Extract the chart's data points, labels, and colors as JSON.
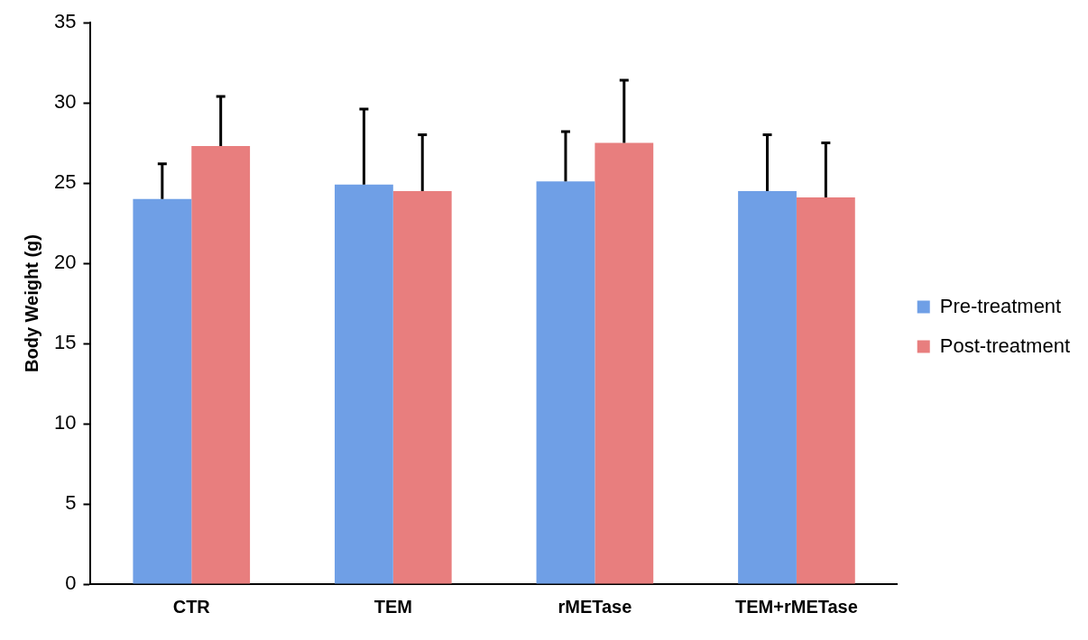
{
  "chart_data": {
    "type": "bar",
    "ylabel": "Body Weight (g)",
    "categories": [
      "CTR",
      "TEM",
      "rMETase",
      "TEM+rMETase"
    ],
    "series": [
      {
        "name": "Pre-treatment",
        "color": "#6f9fe6",
        "values": [
          24.0,
          24.9,
          25.1,
          24.5
        ],
        "errors": [
          [
            24.0,
            26.2
          ],
          [
            24.9,
            29.6
          ],
          [
            25.1,
            28.2
          ],
          [
            24.5,
            28.0
          ]
        ]
      },
      {
        "name": "Post-treatment",
        "color": "#e87e7e",
        "values": [
          27.3,
          24.5,
          27.5,
          24.1
        ],
        "errors": [
          [
            27.3,
            30.4
          ],
          [
            24.5,
            28.0
          ],
          [
            27.5,
            31.4
          ],
          [
            24.1,
            27.5
          ]
        ]
      }
    ],
    "ylim": [
      0,
      35
    ],
    "yticks": [
      0,
      5,
      10,
      15,
      20,
      25,
      30,
      35
    ],
    "grid": false,
    "legend": "right"
  }
}
